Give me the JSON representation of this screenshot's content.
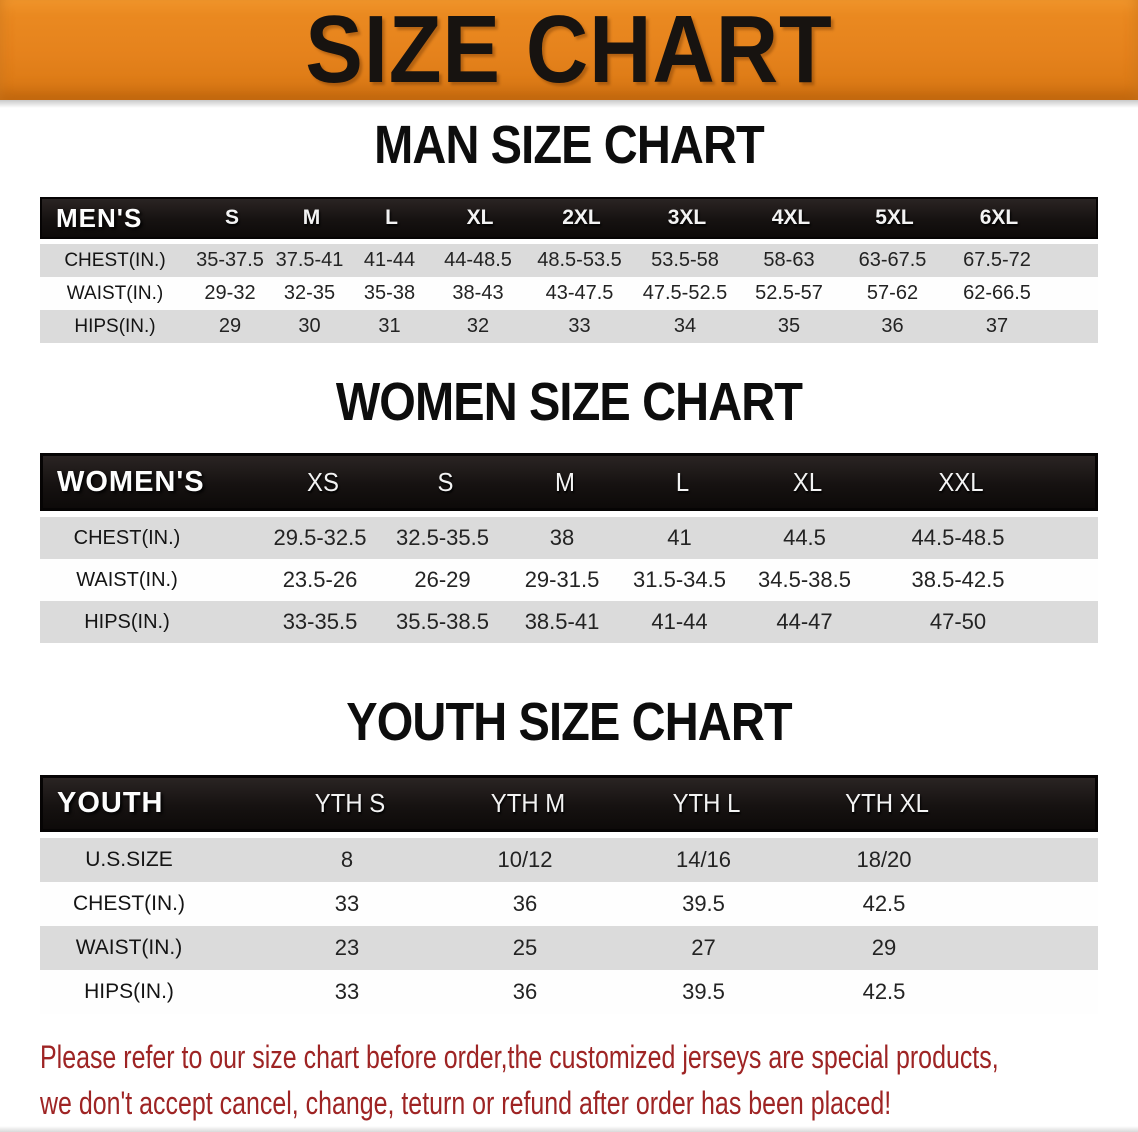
{
  "banner": {
    "title": "SIZE CHART",
    "bg_color": "#e5821c",
    "text_color": "#171310"
  },
  "chart_data": [
    {
      "type": "table",
      "title": "MAN SIZE CHART",
      "corner_label": "MEN'S",
      "columns": [
        "S",
        "M",
        "L",
        "XL",
        "2XL",
        "3XL",
        "4XL",
        "5XL",
        "6XL"
      ],
      "rows": [
        {
          "label": "CHEST(IN.)",
          "values": [
            "35-37.5",
            "37.5-41",
            "41-44",
            "44-48.5",
            "48.5-53.5",
            "53.5-58",
            "58-63",
            "63-67.5",
            "67.5-72"
          ]
        },
        {
          "label": "WAIST(IN.)",
          "values": [
            "29-32",
            "32-35",
            "35-38",
            "38-43",
            "43-47.5",
            "47.5-52.5",
            "52.5-57",
            "57-62",
            "62-66.5"
          ]
        },
        {
          "label": "HIPS(IN.)",
          "values": [
            "29",
            "30",
            "31",
            "32",
            "33",
            "34",
            "35",
            "36",
            "37"
          ]
        }
      ]
    },
    {
      "type": "table",
      "title": "WOMEN SIZE CHART",
      "corner_label": "WOMEN'S",
      "columns": [
        "XS",
        "S",
        "M",
        "L",
        "XL",
        "XXL"
      ],
      "rows": [
        {
          "label": "CHEST(IN.)",
          "values": [
            "29.5-32.5",
            "32.5-35.5",
            "38",
            "41",
            "44.5",
            "44.5-48.5"
          ]
        },
        {
          "label": "WAIST(IN.)",
          "values": [
            "23.5-26",
            "26-29",
            "29-31.5",
            "31.5-34.5",
            "34.5-38.5",
            "38.5-42.5"
          ]
        },
        {
          "label": "HIPS(IN.)",
          "values": [
            "33-35.5",
            "35.5-38.5",
            "38.5-41",
            "41-44",
            "44-47",
            "47-50"
          ]
        }
      ]
    },
    {
      "type": "table",
      "title": "YOUTH SIZE CHART",
      "corner_label": "YOUTH",
      "columns": [
        "YTH S",
        "YTH M",
        "YTH L",
        "YTH XL"
      ],
      "rows": [
        {
          "label": "U.S.SIZE",
          "values": [
            "8",
            "10/12",
            "14/16",
            "18/20"
          ]
        },
        {
          "label": "CHEST(IN.)",
          "values": [
            "33",
            "36",
            "39.5",
            "42.5"
          ]
        },
        {
          "label": "WAIST(IN.)",
          "values": [
            "23",
            "25",
            "27",
            "29"
          ]
        },
        {
          "label": "HIPS(IN.)",
          "values": [
            "33",
            "36",
            "39.5",
            "42.5"
          ]
        }
      ]
    }
  ],
  "disclaimer": {
    "line1": "Please refer to our size chart before order,the customized jerseys are special products,",
    "line2": "we don't accept cancel, change, teturn or refund after order has been placed!",
    "color": "#9e2424"
  }
}
